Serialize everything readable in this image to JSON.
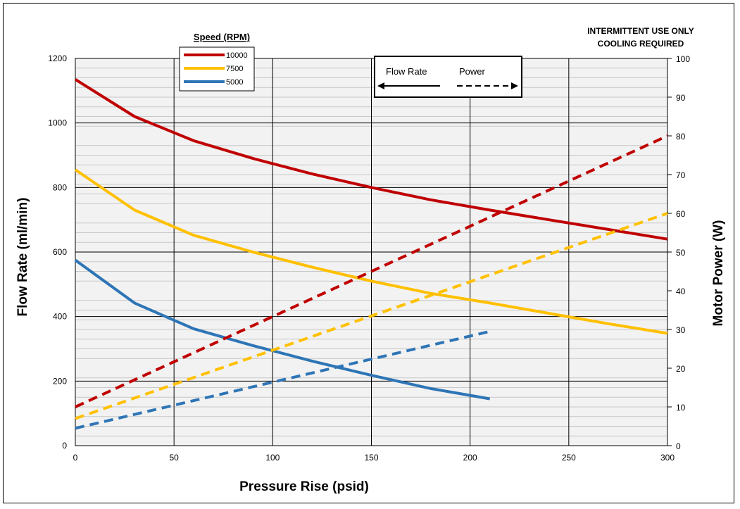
{
  "chart_data": {
    "type": "line",
    "xlabel": "Pressure Rise (psid)",
    "ylabel": "Flow Rate (ml/min)",
    "y2label": "Motor Power (W)",
    "xlim": [
      0,
      300
    ],
    "ylim": [
      0,
      1200
    ],
    "y2lim": [
      0,
      100
    ],
    "x_ticks": [
      0,
      50,
      100,
      150,
      200,
      250,
      300
    ],
    "y_ticks": [
      0,
      200,
      400,
      600,
      800,
      1000,
      1200
    ],
    "y2_ticks": [
      0,
      10,
      20,
      30,
      40,
      50,
      60,
      70,
      80,
      90,
      100
    ],
    "grid": true,
    "note_lines": [
      "INTERMITTENT USE ONLY",
      "COOLING REQUIRED"
    ],
    "legend": {
      "title": "Speed (RPM)",
      "placement": "top-left",
      "entries": [
        {
          "label": "10000",
          "color": "#c00000"
        },
        {
          "label": "7500",
          "color": "#ffc000"
        },
        {
          "label": "5000",
          "color": "#2e75b6"
        }
      ]
    },
    "line_key": {
      "solid_label": "Flow Rate",
      "dashed_label": "Power"
    },
    "series": [
      {
        "name": "10000",
        "metric": "Flow Rate",
        "axis": "left",
        "style": "solid",
        "color": "#c00000",
        "x": [
          0,
          30,
          60,
          90,
          120,
          150,
          180,
          210,
          240,
          270,
          300
        ],
        "y": [
          1135,
          1020,
          945,
          890,
          842,
          800,
          762,
          730,
          700,
          670,
          640
        ]
      },
      {
        "name": "7500",
        "metric": "Flow Rate",
        "axis": "left",
        "style": "solid",
        "color": "#ffc000",
        "x": [
          0,
          30,
          60,
          90,
          120,
          150,
          180,
          210,
          240,
          270,
          300
        ],
        "y": [
          855,
          730,
          652,
          600,
          553,
          510,
          472,
          442,
          410,
          378,
          348
        ]
      },
      {
        "name": "5000",
        "metric": "Flow Rate",
        "axis": "left",
        "style": "solid",
        "color": "#2e75b6",
        "x": [
          0,
          30,
          60,
          90,
          120,
          150,
          180,
          210
        ],
        "y": [
          575,
          442,
          362,
          310,
          262,
          218,
          177,
          145
        ]
      },
      {
        "name": "10000",
        "metric": "Power",
        "axis": "right",
        "style": "dashed",
        "color": "#c00000",
        "x": [
          0,
          300
        ],
        "y": [
          10,
          80
        ]
      },
      {
        "name": "7500",
        "metric": "Power",
        "axis": "right",
        "style": "dashed",
        "color": "#ffc000",
        "x": [
          0,
          300
        ],
        "y": [
          7,
          60
        ]
      },
      {
        "name": "5000",
        "metric": "Power",
        "axis": "right",
        "style": "dashed",
        "color": "#2e75b6",
        "x": [
          0,
          210
        ],
        "y": [
          4.5,
          29.5
        ]
      }
    ]
  }
}
